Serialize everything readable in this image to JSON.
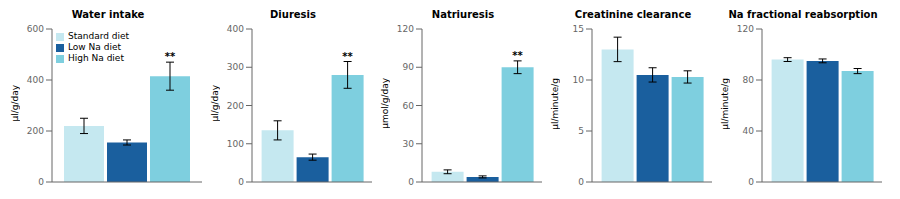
{
  "chart_data": [
    {
      "type": "bar",
      "title": "Water intake",
      "ylabel": "µl/g/day",
      "categories": [
        null
      ],
      "series": [
        {
          "name": "Standard diet",
          "color": "#C5E8F0",
          "values": [
            220
          ],
          "errors": [
            30
          ]
        },
        {
          "name": "Low Na diet",
          "color": "#1A5F9E",
          "values": [
            155
          ],
          "errors": [
            10
          ]
        },
        {
          "name": "High Na diet",
          "color": "#7ECFDF",
          "values": [
            415
          ],
          "errors": [
            55
          ]
        }
      ],
      "ylim": [
        0,
        600
      ],
      "yticks": [
        0,
        200,
        400,
        600
      ],
      "grid": false,
      "tick_labels": "y",
      "legend": "upper left",
      "annotations": [
        {
          "text": "**",
          "series": "High Na diet"
        }
      ]
    },
    {
      "type": "bar",
      "title": "Diuresis",
      "ylabel": "µl/g/day",
      "categories": [
        null
      ],
      "series": [
        {
          "name": "Standard diet",
          "color": "#C5E8F0",
          "values": [
            135
          ],
          "errors": [
            25
          ]
        },
        {
          "name": "Low Na diet",
          "color": "#1A5F9E",
          "values": [
            65
          ],
          "errors": [
            8
          ]
        },
        {
          "name": "High Na diet",
          "color": "#7ECFDF",
          "values": [
            280
          ],
          "errors": [
            35
          ]
        }
      ],
      "ylim": [
        0,
        400
      ],
      "yticks": [
        0,
        100,
        200,
        300,
        400
      ],
      "grid": false,
      "tick_labels": "y",
      "annotations": [
        {
          "text": "**",
          "series": "High Na diet"
        }
      ]
    },
    {
      "type": "bar",
      "title": "Natriuresis",
      "ylabel": "µmol/g/day",
      "categories": [
        null
      ],
      "series": [
        {
          "name": "Standard diet",
          "color": "#C5E8F0",
          "values": [
            8
          ],
          "errors": [
            1.5
          ]
        },
        {
          "name": "Low Na diet",
          "color": "#1A5F9E",
          "values": [
            4
          ],
          "errors": [
            0.8
          ]
        },
        {
          "name": "High Na diet",
          "color": "#7ECFDF",
          "values": [
            90
          ],
          "errors": [
            5
          ]
        }
      ],
      "ylim": [
        0,
        120
      ],
      "yticks": [
        0,
        30,
        60,
        90,
        120
      ],
      "grid": false,
      "tick_labels": "y",
      "annotations": [
        {
          "text": "**",
          "series": "High Na diet"
        }
      ]
    },
    {
      "type": "bar",
      "title": "Creatinine clearance",
      "ylabel": "µl/minute/g",
      "categories": [
        null
      ],
      "series": [
        {
          "name": "Standard diet",
          "color": "#C5E8F0",
          "values": [
            13.0
          ],
          "errors": [
            1.2
          ]
        },
        {
          "name": "Low Na diet",
          "color": "#1A5F9E",
          "values": [
            10.5
          ],
          "errors": [
            0.7
          ]
        },
        {
          "name": "High Na diet",
          "color": "#7ECFDF",
          "values": [
            10.3
          ],
          "errors": [
            0.6
          ]
        }
      ],
      "ylim": [
        0,
        15
      ],
      "yticks": [
        0,
        5,
        10,
        15
      ],
      "grid": false,
      "tick_labels": "y"
    },
    {
      "type": "bar",
      "title": "Na fractional reabsorption",
      "ylabel": "µl/minute/g",
      "categories": [
        null
      ],
      "series": [
        {
          "name": "Standard diet",
          "color": "#C5E8F0",
          "values": [
            96
          ],
          "errors": [
            1.5
          ]
        },
        {
          "name": "Low Na diet",
          "color": "#1A5F9E",
          "values": [
            95
          ],
          "errors": [
            1.5
          ]
        },
        {
          "name": "High Na diet",
          "color": "#7ECFDF",
          "values": [
            87
          ],
          "errors": [
            2.0
          ]
        }
      ],
      "ylim": [
        0,
        120
      ],
      "yticks": [
        0,
        40,
        80,
        120
      ],
      "grid": false,
      "tick_labels": "y"
    }
  ]
}
